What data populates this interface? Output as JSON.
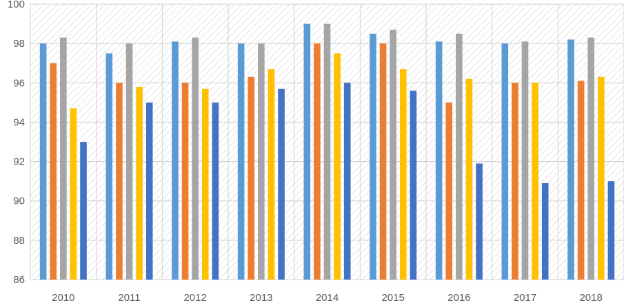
{
  "chart_data": {
    "type": "bar",
    "title": "",
    "xlabel": "",
    "ylabel": "",
    "categories": [
      "2010",
      "2011",
      "2012",
      "2013",
      "2014",
      "2015",
      "2016",
      "2017",
      "2018"
    ],
    "ylim": [
      86,
      100
    ],
    "yticks": [
      "86",
      "88",
      "90",
      "92",
      "94",
      "96",
      "98",
      "100"
    ],
    "grid": true,
    "legend": "none",
    "series": [
      {
        "color": "#5B9BD5",
        "values": [
          98.0,
          97.5,
          98.1,
          98.0,
          99.0,
          98.5,
          98.1,
          98.0,
          98.2
        ]
      },
      {
        "color": "#ED7D31",
        "values": [
          97.0,
          96.0,
          96.0,
          96.3,
          98.0,
          98.0,
          95.0,
          96.0,
          96.1
        ]
      },
      {
        "color": "#A5A5A5",
        "values": [
          98.3,
          98.0,
          98.3,
          98.0,
          99.0,
          98.7,
          98.5,
          98.1,
          98.3
        ]
      },
      {
        "color": "#FFC000",
        "values": [
          94.7,
          95.8,
          95.7,
          96.7,
          97.5,
          96.7,
          96.2,
          96.0,
          96.3
        ]
      },
      {
        "color": "#4472C4",
        "values": [
          93.0,
          95.0,
          95.0,
          95.7,
          96.0,
          95.6,
          91.9,
          90.9,
          91.0
        ]
      }
    ]
  }
}
